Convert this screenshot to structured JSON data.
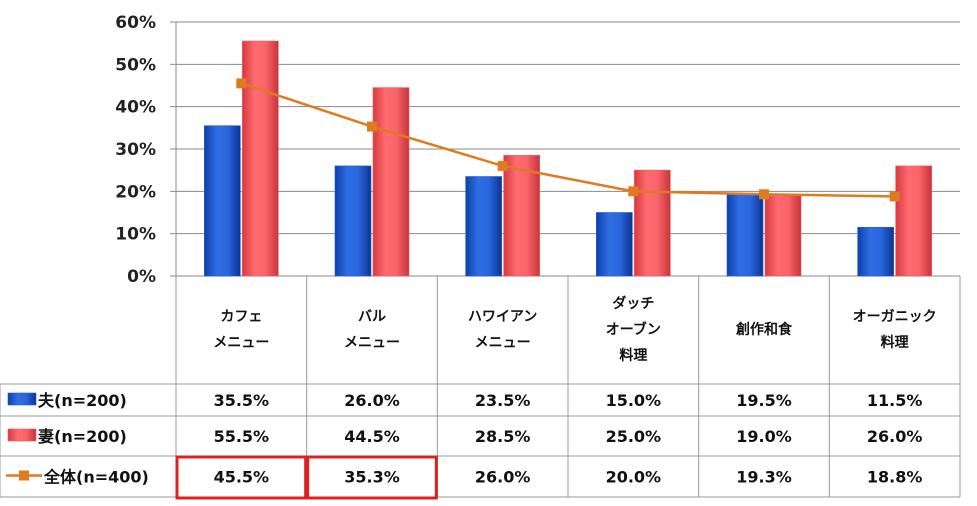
{
  "chart_data": {
    "type": "bar",
    "y_axis": {
      "min": 0,
      "max": 60,
      "step": 10,
      "tick_labels": [
        "0%",
        "10%",
        "20%",
        "30%",
        "40%",
        "50%",
        "60%"
      ]
    },
    "categories": [
      [
        "カフェ",
        "メニュー"
      ],
      [
        "バル",
        "メニュー"
      ],
      [
        "ハワイアン",
        "メニュー"
      ],
      [
        "ダッチ",
        "オーブン",
        "料理"
      ],
      [
        "創作和食"
      ],
      [
        "オーガニック",
        "料理"
      ]
    ],
    "series": [
      {
        "name": "夫(n=200)",
        "kind": "bar",
        "color": "#1f5bd6",
        "values": [
          35.5,
          26.0,
          23.5,
          15.0,
          19.5,
          11.5
        ],
        "labels": [
          "35.5%",
          "26.0%",
          "23.5%",
          "15.0%",
          "19.5%",
          "11.5%"
        ]
      },
      {
        "name": "妻(n=200)",
        "kind": "bar",
        "color": "#f05a5e",
        "values": [
          55.5,
          44.5,
          28.5,
          25.0,
          19.0,
          26.0
        ],
        "labels": [
          "55.5%",
          "44.5%",
          "28.5%",
          "25.0%",
          "19.0%",
          "26.0%"
        ]
      },
      {
        "name": "全体(n=400)",
        "kind": "line",
        "color": "#e07a1f",
        "values": [
          45.5,
          35.3,
          26.0,
          20.0,
          19.3,
          18.8
        ],
        "labels": [
          "45.5%",
          "35.3%",
          "26.0%",
          "20.0%",
          "19.3%",
          "18.8%"
        ]
      }
    ],
    "highlighted_cells": [
      {
        "series": 2,
        "category": 0
      },
      {
        "series": 2,
        "category": 1
      }
    ],
    "highlight_color": "#e02020",
    "grid": true,
    "legend": "table-left"
  }
}
